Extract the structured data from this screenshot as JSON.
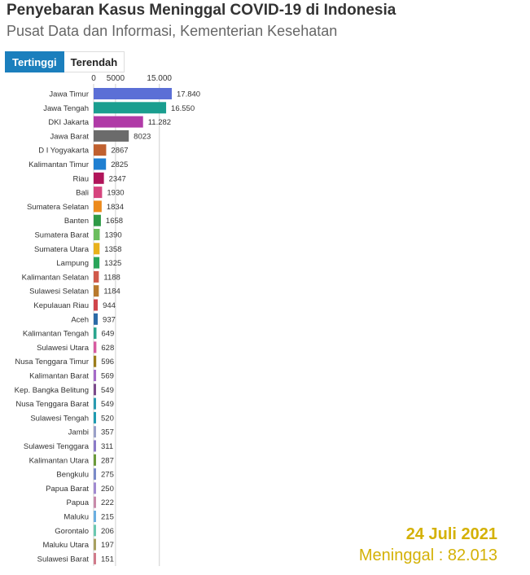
{
  "header": {
    "title": "Penyebaran Kasus Meninggal COVID-19 di Indonesia",
    "subtitle": "Pusat Data dan Informasi, Kementerian Kesehatan"
  },
  "tabs": [
    {
      "label": "Tertinggi",
      "active": true
    },
    {
      "label": "Terendah",
      "active": false
    }
  ],
  "footer": {
    "date": "24 Juli 2021",
    "total": "Meninggal : 82.013"
  },
  "chart_data": {
    "type": "bar",
    "orientation": "horizontal",
    "xlim": [
      0,
      17840
    ],
    "x_ticks": [
      {
        "value": 0,
        "label": "0"
      },
      {
        "value": 5000,
        "label": "5000"
      },
      {
        "value": 15000,
        "label": "15.000"
      }
    ],
    "grid": true,
    "categories": [
      "Jawa Timur",
      "Jawa Tengah",
      "DKI Jakarta",
      "Jawa Barat",
      "D I Yogyakarta",
      "Kalimantan Timur",
      "Riau",
      "Bali",
      "Sumatera Selatan",
      "Banten",
      "Sumatera Barat",
      "Sumatera Utara",
      "Lampung",
      "Kalimantan Selatan",
      "Sulawesi Selatan",
      "Kepulauan Riau",
      "Aceh",
      "Kalimantan Tengah",
      "Sulawesi Utara",
      "Nusa Tenggara Timur",
      "Kalimantan Barat",
      "Kep. Bangka Belitung",
      "Nusa Tenggara Barat",
      "Sulawesi Tengah",
      "Jambi",
      "Sulawesi Tenggara",
      "Kalimantan Utara",
      "Bengkulu",
      "Papua Barat",
      "Papua",
      "Maluku",
      "Gorontalo",
      "Maluku Utara",
      "Sulawesi Barat"
    ],
    "values": [
      17840,
      16550,
      11282,
      8023,
      2867,
      2825,
      2347,
      1930,
      1834,
      1658,
      1390,
      1358,
      1325,
      1188,
      1184,
      944,
      937,
      649,
      628,
      596,
      569,
      549,
      549,
      520,
      357,
      311,
      287,
      275,
      250,
      222,
      215,
      206,
      197,
      151
    ],
    "value_labels": [
      "17.840",
      "16.550",
      "11.282",
      "8023",
      "2867",
      "2825",
      "2347",
      "1930",
      "1834",
      "1658",
      "1390",
      "1358",
      "1325",
      "1188",
      "1184",
      "944",
      "937",
      "649",
      "628",
      "596",
      "569",
      "549",
      "549",
      "520",
      "357",
      "311",
      "287",
      "275",
      "250",
      "222",
      "215",
      "206",
      "197",
      "151"
    ],
    "colors": [
      "#5b6fd6",
      "#1a9e8f",
      "#b03aa7",
      "#6b6b6b",
      "#c0602f",
      "#1f7fd1",
      "#b0155a",
      "#d6457e",
      "#ec8a1c",
      "#2e9a46",
      "#6cbe5e",
      "#e8b11c",
      "#2aa55a",
      "#d0594a",
      "#b8792d",
      "#d0454b",
      "#2b6aa6",
      "#2aa58e",
      "#d65aa0",
      "#9c7c1a",
      "#a56ac8",
      "#7a4a8a",
      "#2a9ab0",
      "#1e9ab0",
      "#9aa0c8",
      "#8a7ac8",
      "#6a9a3a",
      "#7a8ac8",
      "#a08ad0",
      "#c88aaa",
      "#6aaee0",
      "#6ac8b0",
      "#a8a060",
      "#d07a8a"
    ]
  }
}
